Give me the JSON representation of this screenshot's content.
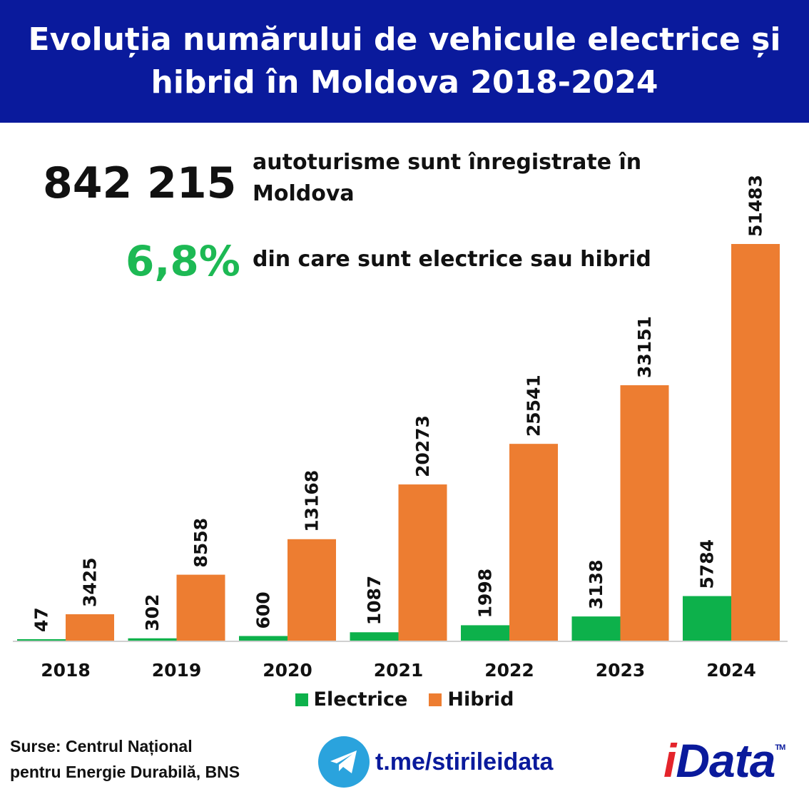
{
  "header": {
    "title": "Evoluția numărului de vehicule electrice și hibrid în Moldova 2018-2024"
  },
  "stats": {
    "total_number": "842 215",
    "total_desc": "autoturisme sunt înregistrate în Moldova",
    "percent": "6,8%",
    "percent_desc": "din care sunt electrice sau hibrid"
  },
  "colors": {
    "header_bg": "#0a1a9c",
    "electric": "#0db14b",
    "hybrid": "#ed7d31",
    "percent": "#1db954"
  },
  "chart_data": {
    "type": "bar",
    "categories": [
      "2018",
      "2019",
      "2020",
      "2021",
      "2022",
      "2023",
      "2024"
    ],
    "series": [
      {
        "name": "Electrice",
        "values": [
          47,
          302,
          600,
          1087,
          1998,
          3138,
          5784
        ]
      },
      {
        "name": "Hibrid",
        "values": [
          3425,
          8558,
          13168,
          20273,
          25541,
          33151,
          51483
        ]
      }
    ],
    "ylim": [
      0,
      51483
    ],
    "legend": "bottom",
    "grid": false
  },
  "legend": {
    "electric_label": "Electrice",
    "hybrid_label": "Hibrid"
  },
  "footer": {
    "source_line1": "Surse: Centrul Național",
    "source_line2": "pentru Energie Durabilă, BNS",
    "telegram": "t.me/stirileidata",
    "telegram_icon": "telegram-icon",
    "logo_i": "i",
    "logo_rest": "Data",
    "logo_tm": "TM"
  }
}
